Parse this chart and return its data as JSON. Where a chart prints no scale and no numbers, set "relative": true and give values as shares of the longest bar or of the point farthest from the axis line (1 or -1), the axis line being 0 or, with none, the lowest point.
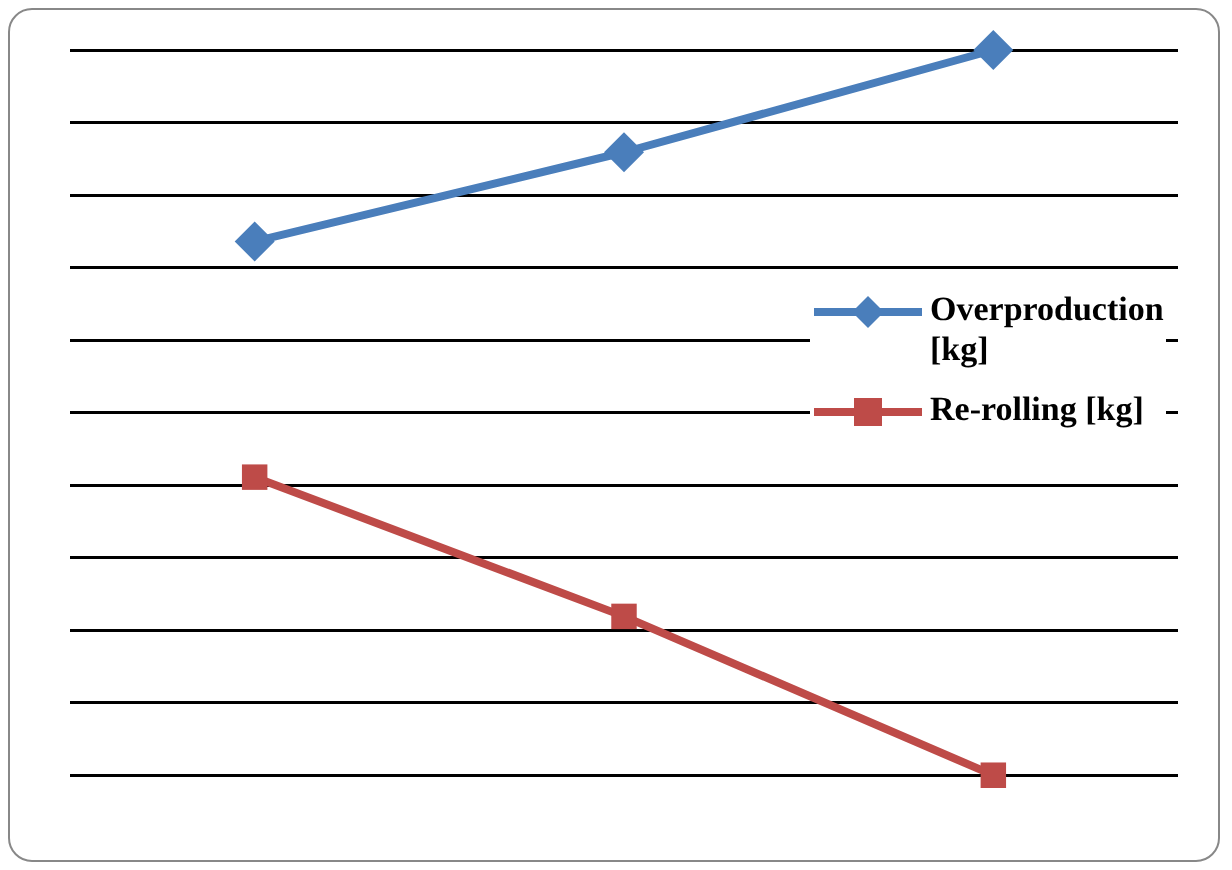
{
  "chart_data": {
    "type": "line",
    "relative": true,
    "categories": [
      null,
      null,
      null
    ],
    "series": [
      {
        "name": "Overproduction [kg]",
        "color": "#4a7ebb",
        "values": [
          0.736,
          0.859,
          1
        ],
        "marker": "diamond"
      },
      {
        "name": "Re-rolling [kg]",
        "color": "#be4b48",
        "values": [
          0.411,
          0.219,
          0
        ],
        "marker": "square"
      }
    ],
    "grid": "y",
    "legend": "right"
  }
}
